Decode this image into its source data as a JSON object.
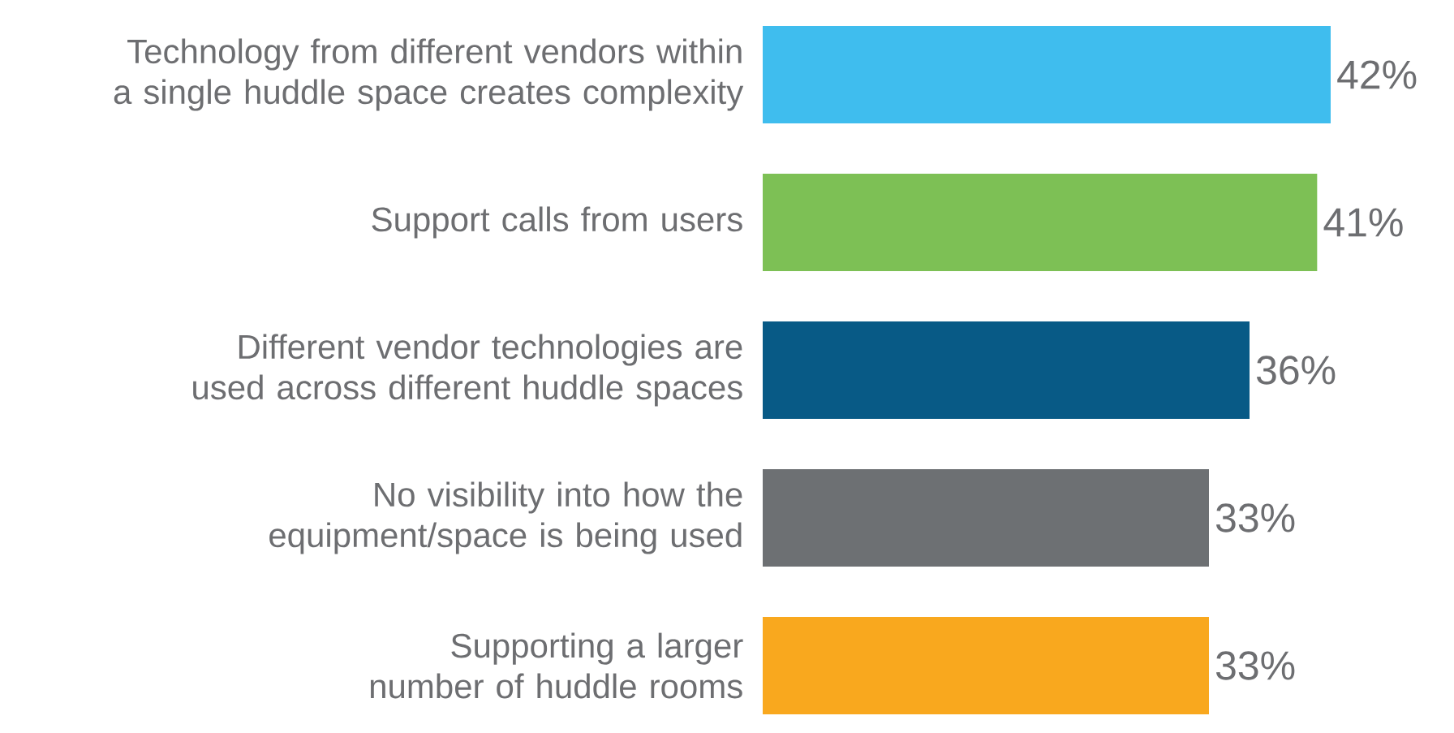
{
  "chart_data": {
    "type": "bar",
    "orientation": "horizontal",
    "categories": [
      "Technology from different vendors within a single huddle space creates complexity",
      "Support calls from users",
      "Different vendor technologies are used across different huddle spaces",
      "No visibility into how the equipment/space is being used",
      "Supporting a larger number of huddle rooms"
    ],
    "values": [
      42,
      41,
      36,
      33,
      33
    ],
    "colors": [
      "#3fbdee",
      "#7dc055",
      "#085a86",
      "#6d7073",
      "#f9a81e"
    ],
    "value_labels": [
      "42%",
      "41%",
      "36%",
      "33%",
      "33%"
    ]
  }
}
